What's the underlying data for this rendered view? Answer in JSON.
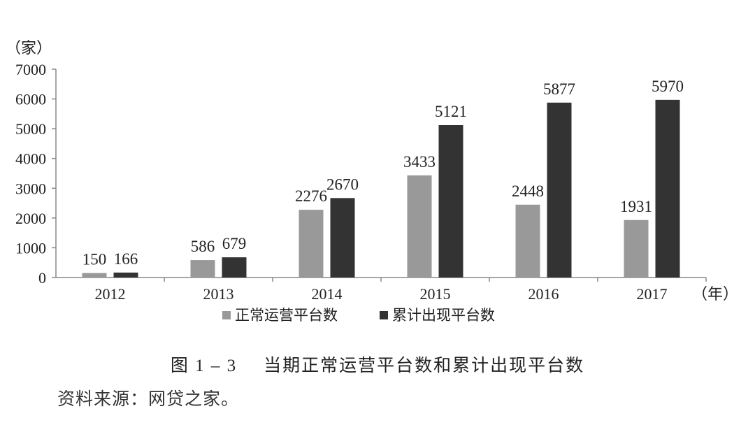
{
  "chart_data": {
    "type": "bar",
    "categories": [
      "2012",
      "2013",
      "2014",
      "2015",
      "2016",
      "2017"
    ],
    "series": [
      {
        "name": "正常运营平台数",
        "values": [
          150,
          586,
          2276,
          3433,
          2448,
          1931
        ],
        "color": "#999999"
      },
      {
        "name": "累计出现平台数",
        "values": [
          166,
          679,
          2670,
          5121,
          5877,
          5970
        ],
        "color": "#333333"
      }
    ],
    "y_unit_label": "（家）",
    "x_unit_label": "（年）",
    "ylim": [
      0,
      7000
    ],
    "yticks": [
      "0",
      "1000",
      "2000",
      "3000",
      "4000",
      "5000",
      "6000",
      "7000"
    ],
    "legend_position": "bottom",
    "grid": false
  },
  "caption": {
    "number": "图 1 – 3",
    "text": "当期正常运营平台数和累计出现平台数"
  },
  "source_note": "资料来源：网贷之家。"
}
